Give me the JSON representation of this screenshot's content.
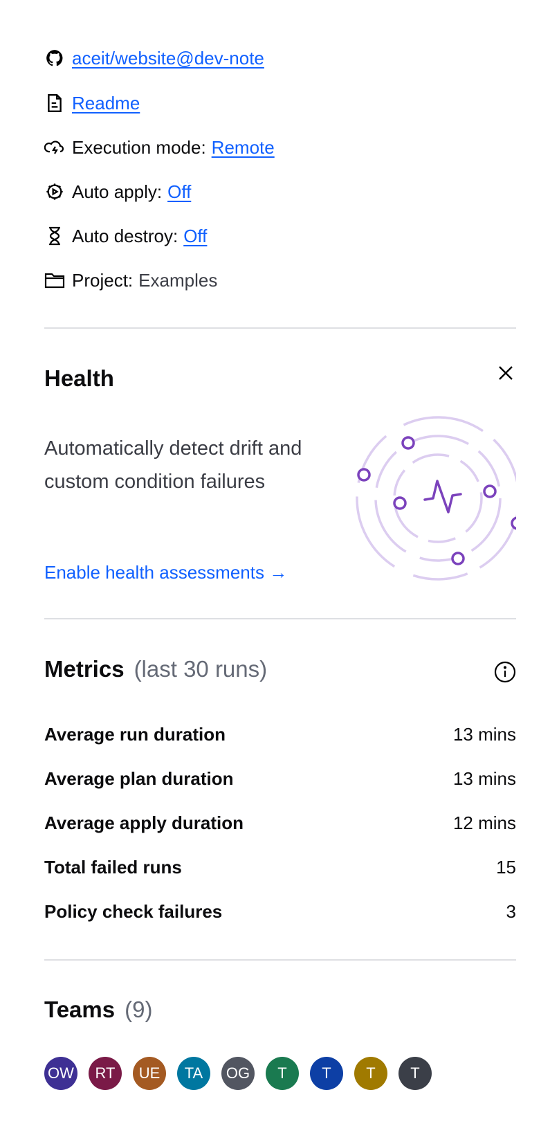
{
  "details": {
    "repo_link": "aceit/website@dev-note",
    "readme_link": "Readme",
    "execution_mode": {
      "label": "Execution mode:",
      "value": "Remote"
    },
    "auto_apply": {
      "label": "Auto apply:",
      "value": "Off"
    },
    "auto_destroy": {
      "label": "Auto destroy:",
      "value": "Off"
    },
    "project": {
      "label": "Project:",
      "value": "Examples"
    }
  },
  "health": {
    "title": "Health",
    "description": "Automatically detect drift and custom condition failures",
    "link": "Enable health assessments",
    "accent": "#7b42bc"
  },
  "metrics": {
    "title": "Metrics",
    "subtitle": "(last 30 runs)",
    "rows": [
      {
        "label": "Average run duration",
        "value": "13 mins"
      },
      {
        "label": "Average plan duration",
        "value": "13 mins"
      },
      {
        "label": "Average apply duration",
        "value": "12 mins"
      },
      {
        "label": "Total failed runs",
        "value": "15"
      },
      {
        "label": "Policy check failures",
        "value": "3"
      }
    ]
  },
  "teams": {
    "title": "Teams",
    "count": "(9)",
    "avatars": [
      {
        "initials": "OW",
        "color": "#3e3094"
      },
      {
        "initials": "RT",
        "color": "#7a1a47"
      },
      {
        "initials": "UE",
        "color": "#a45a22"
      },
      {
        "initials": "TA",
        "color": "#0077a0"
      },
      {
        "initials": "OG",
        "color": "#525661"
      },
      {
        "initials": "T",
        "color": "#1a7a50"
      },
      {
        "initials": "T",
        "color": "#0d3fa5"
      },
      {
        "initials": "T",
        "color": "#a07a00"
      },
      {
        "initials": "T",
        "color": "#3b3f48"
      }
    ]
  }
}
